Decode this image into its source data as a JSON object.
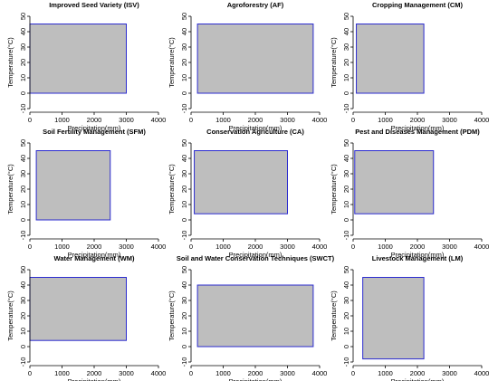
{
  "chart_data": [
    {
      "type": "range",
      "title": "Improved Seed Variety (ISV)",
      "xlabel": "Precipitation(mm)",
      "ylabel": "Temperature(°C)",
      "xlim": [
        0,
        4000
      ],
      "ylim": [
        -10,
        50
      ],
      "xticks": [
        0,
        1000,
        2000,
        3000,
        4000
      ],
      "yticks": [
        -10,
        0,
        10,
        20,
        30,
        40,
        50
      ],
      "range": {
        "x": [
          0,
          3000
        ],
        "y": [
          0,
          45
        ]
      }
    },
    {
      "type": "range",
      "title": "Agroforestry (AF)",
      "xlabel": "Precipitation(mm)",
      "ylabel": "Temperature(°C)",
      "xlim": [
        0,
        4000
      ],
      "ylim": [
        -10,
        50
      ],
      "xticks": [
        0,
        1000,
        2000,
        3000,
        4000
      ],
      "yticks": [
        -10,
        0,
        10,
        20,
        30,
        40,
        50
      ],
      "range": {
        "x": [
          200,
          3800
        ],
        "y": [
          0,
          45
        ]
      }
    },
    {
      "type": "range",
      "title": "Cropping Management (CM)",
      "xlabel": "Precipitation(mm)",
      "ylabel": "Temperature(°C)",
      "xlim": [
        0,
        4000
      ],
      "ylim": [
        -10,
        50
      ],
      "xticks": [
        0,
        1000,
        2000,
        3000,
        4000
      ],
      "yticks": [
        -10,
        0,
        10,
        20,
        30,
        40,
        50
      ],
      "range": {
        "x": [
          100,
          2200
        ],
        "y": [
          0,
          45
        ]
      }
    },
    {
      "type": "range",
      "title": "Soil Fertility Management (SFM)",
      "xlabel": "Precipitation(mm)",
      "ylabel": "Temperature(°C)",
      "xlim": [
        0,
        4000
      ],
      "ylim": [
        -10,
        50
      ],
      "xticks": [
        0,
        1000,
        2000,
        3000,
        4000
      ],
      "yticks": [
        -10,
        0,
        10,
        20,
        30,
        40,
        50
      ],
      "range": {
        "x": [
          200,
          2500
        ],
        "y": [
          0,
          45
        ]
      }
    },
    {
      "type": "range",
      "title": "Conservation Agriculture (CA)",
      "xlabel": "Precipitation(mm)",
      "ylabel": "Temperature(°C)",
      "xlim": [
        0,
        4000
      ],
      "ylim": [
        -10,
        50
      ],
      "xticks": [
        0,
        1000,
        2000,
        3000,
        4000
      ],
      "yticks": [
        -10,
        0,
        10,
        20,
        30,
        40,
        50
      ],
      "range": {
        "x": [
          100,
          3000
        ],
        "y": [
          4,
          45
        ]
      }
    },
    {
      "type": "range",
      "title": "Pest and Diseases Management (PDM)",
      "xlabel": "Precipitation(mm)",
      "ylabel": "Temperature(°C)",
      "xlim": [
        0,
        4000
      ],
      "ylim": [
        -10,
        50
      ],
      "xticks": [
        0,
        1000,
        2000,
        3000,
        4000
      ],
      "yticks": [
        -10,
        0,
        10,
        20,
        30,
        40,
        50
      ],
      "range": {
        "x": [
          50,
          2500
        ],
        "y": [
          4,
          45
        ]
      }
    },
    {
      "type": "range",
      "title": "Water Management (WM)",
      "xlabel": "Precipitation(mm)",
      "ylabel": "Temperature(°C)",
      "xlim": [
        0,
        4000
      ],
      "ylim": [
        -10,
        50
      ],
      "xticks": [
        0,
        1000,
        2000,
        3000,
        4000
      ],
      "yticks": [
        -10,
        0,
        10,
        20,
        30,
        40,
        50
      ],
      "range": {
        "x": [
          0,
          3000
        ],
        "y": [
          4,
          45
        ]
      }
    },
    {
      "type": "range",
      "title": "Soil and Water Conservation Techniques (SWCT)",
      "xlabel": "Precipitation(mm)",
      "ylabel": "Temperature(°C)",
      "xlim": [
        0,
        4000
      ],
      "ylim": [
        -10,
        50
      ],
      "xticks": [
        0,
        1000,
        2000,
        3000,
        4000
      ],
      "yticks": [
        -10,
        0,
        10,
        20,
        30,
        40,
        50
      ],
      "range": {
        "x": [
          200,
          3800
        ],
        "y": [
          0,
          40
        ]
      }
    },
    {
      "type": "range",
      "title": "Livestock Management (LM)",
      "xlabel": "Precipitation(mm)",
      "ylabel": "Temperature(°C)",
      "xlim": [
        0,
        4000
      ],
      "ylim": [
        -10,
        50
      ],
      "xticks": [
        0,
        1000,
        2000,
        3000,
        4000
      ],
      "yticks": [
        -10,
        0,
        10,
        20,
        30,
        40,
        50
      ],
      "range": {
        "x": [
          300,
          2200
        ],
        "y": [
          -8,
          45
        ]
      }
    }
  ],
  "colors": {
    "fill": "#bebebe",
    "stroke": "#2b2bcf",
    "axis": "#000000"
  }
}
